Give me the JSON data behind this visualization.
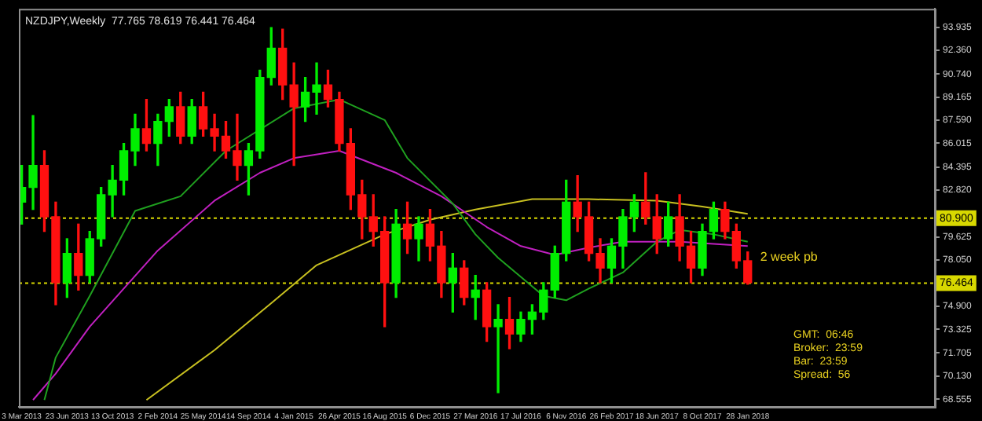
{
  "chart_data": {
    "type": "candlestick",
    "title": "NZDJPY,Weekly  77.765 78.619 76.441 76.464",
    "x": [
      "2013-03-03",
      "2013-03-31",
      "2013-04-28",
      "2013-05-26",
      "2013-06-23",
      "2013-07-21",
      "2013-08-18",
      "2013-09-15",
      "2013-10-13",
      "2013-11-10",
      "2013-12-08",
      "2014-01-05",
      "2014-02-02",
      "2014-03-02",
      "2014-03-30",
      "2014-04-27",
      "2014-05-25",
      "2014-06-22",
      "2014-07-20",
      "2014-08-17",
      "2014-09-14",
      "2014-10-12",
      "2014-11-09",
      "2014-12-07",
      "2015-01-04",
      "2015-02-01",
      "2015-03-01",
      "2015-03-29",
      "2015-04-26",
      "2015-05-24",
      "2015-06-21",
      "2015-07-19",
      "2015-08-16",
      "2015-09-13",
      "2015-10-11",
      "2015-11-08",
      "2015-12-06",
      "2016-01-03",
      "2016-01-31",
      "2016-02-28",
      "2016-03-27",
      "2016-04-24",
      "2016-05-22",
      "2016-06-19",
      "2016-07-17",
      "2016-08-14",
      "2016-09-11",
      "2016-10-09",
      "2016-11-06",
      "2016-12-04",
      "2017-01-01",
      "2017-01-29",
      "2017-02-26",
      "2017-03-26",
      "2017-04-23",
      "2017-05-21",
      "2017-06-18",
      "2017-07-16",
      "2017-08-13",
      "2017-09-10",
      "2017-10-08",
      "2017-11-05",
      "2017-12-03",
      "2017-12-31",
      "2018-01-28"
    ],
    "ohlc": [
      [
        82.0,
        84.5,
        80.5,
        83.0
      ],
      [
        83.0,
        87.9,
        81.5,
        84.5
      ],
      [
        84.5,
        85.5,
        80.0,
        81.0
      ],
      [
        81.0,
        82.0,
        75.0,
        76.5
      ],
      [
        76.5,
        79.5,
        75.5,
        78.5
      ],
      [
        78.5,
        80.5,
        76.0,
        77.0
      ],
      [
        77.0,
        80.0,
        76.5,
        79.5
      ],
      [
        79.5,
        83.0,
        79.0,
        82.5
      ],
      [
        82.5,
        84.5,
        81.0,
        83.5
      ],
      [
        83.5,
        86.0,
        82.5,
        85.5
      ],
      [
        85.5,
        88.0,
        84.5,
        87.0
      ],
      [
        87.0,
        89.0,
        85.5,
        86.0
      ],
      [
        86.0,
        88.0,
        84.5,
        87.5
      ],
      [
        87.5,
        89.0,
        86.5,
        88.5
      ],
      [
        88.5,
        89.5,
        86.0,
        86.5
      ],
      [
        86.5,
        89.0,
        86.0,
        88.5
      ],
      [
        88.5,
        89.5,
        86.5,
        87.0
      ],
      [
        87.0,
        88.0,
        85.5,
        86.5
      ],
      [
        86.5,
        87.5,
        85.0,
        85.5
      ],
      [
        85.5,
        88.0,
        83.5,
        84.5
      ],
      [
        84.5,
        86.0,
        82.5,
        85.5
      ],
      [
        85.5,
        91.0,
        85.0,
        90.5
      ],
      [
        90.5,
        93.9,
        90.0,
        92.5
      ],
      [
        92.5,
        93.8,
        89.0,
        90.0
      ],
      [
        90.0,
        91.5,
        84.5,
        88.5
      ],
      [
        88.5,
        90.5,
        87.5,
        89.5
      ],
      [
        89.5,
        91.5,
        88.0,
        90.0
      ],
      [
        90.0,
        91.0,
        88.5,
        89.0
      ],
      [
        89.0,
        89.5,
        85.5,
        86.0
      ],
      [
        86.0,
        87.0,
        81.5,
        82.5
      ],
      [
        82.5,
        83.5,
        79.5,
        81.0
      ],
      [
        81.0,
        82.5,
        79.0,
        80.0
      ],
      [
        80.0,
        81.0,
        73.5,
        76.5
      ],
      [
        76.5,
        81.5,
        75.5,
        80.5
      ],
      [
        80.5,
        82.0,
        78.5,
        79.5
      ],
      [
        79.5,
        81.0,
        78.0,
        80.5
      ],
      [
        80.5,
        81.5,
        78.0,
        79.0
      ],
      [
        79.0,
        80.0,
        75.5,
        76.5
      ],
      [
        76.5,
        78.5,
        74.5,
        77.5
      ],
      [
        77.5,
        78.0,
        75.0,
        75.5
      ],
      [
        75.5,
        77.0,
        74.0,
        76.0
      ],
      [
        76.0,
        76.5,
        72.5,
        73.5
      ],
      [
        73.5,
        75.0,
        69.0,
        74.0
      ],
      [
        74.0,
        75.5,
        72.0,
        73.0
      ],
      [
        73.0,
        74.5,
        72.5,
        74.0
      ],
      [
        74.0,
        75.0,
        73.0,
        74.5
      ],
      [
        74.5,
        76.5,
        74.0,
        76.0
      ],
      [
        76.0,
        79.0,
        75.5,
        78.5
      ],
      [
        78.5,
        83.5,
        78.0,
        82.0
      ],
      [
        82.0,
        83.8,
        80.0,
        81.0
      ],
      [
        81.0,
        82.0,
        78.0,
        78.5
      ],
      [
        78.5,
        79.5,
        76.5,
        77.5
      ],
      [
        77.5,
        79.5,
        76.5,
        79.0
      ],
      [
        79.0,
        81.5,
        77.5,
        81.0
      ],
      [
        81.0,
        82.5,
        80.0,
        82.0
      ],
      [
        82.0,
        84.0,
        80.5,
        81.0
      ],
      [
        81.0,
        82.5,
        78.5,
        79.5
      ],
      [
        79.5,
        82.0,
        79.0,
        81.0
      ],
      [
        81.0,
        82.5,
        78.0,
        79.0
      ],
      [
        79.0,
        80.0,
        76.5,
        77.5
      ],
      [
        77.5,
        80.5,
        77.0,
        80.0
      ],
      [
        80.0,
        82.0,
        79.5,
        81.5
      ],
      [
        81.5,
        82.0,
        79.5,
        80.0
      ],
      [
        80.0,
        80.5,
        77.5,
        78.0
      ],
      [
        78.0,
        78.6,
        76.4,
        76.5
      ]
    ],
    "series": [
      {
        "type": "line",
        "color": "#1fa01f",
        "x": [
          "2013-04-28",
          "2013-05-26",
          "2013-08-18",
          "2013-12-08",
          "2014-03-30",
          "2014-07-20",
          "2015-01-04",
          "2015-04-26",
          "2015-08-16",
          "2015-10-11",
          "2016-01-31",
          "2016-03-27",
          "2016-05-22",
          "2016-09-11",
          "2016-11-06",
          "2017-01-01",
          "2017-03-26",
          "2017-06-18",
          "2017-08-13",
          "2017-11-05",
          "2018-01-28"
        ],
        "values": [
          68.5,
          71.4,
          75.6,
          81.4,
          82.4,
          85.5,
          88.4,
          89.0,
          87.6,
          85.0,
          81.9,
          79.8,
          78.2,
          75.6,
          75.3,
          76.1,
          77.2,
          79.3,
          80.1,
          79.8,
          79.3
        ]
      },
      {
        "type": "line",
        "color": "#c020c0",
        "x": [
          "2013-03-31",
          "2013-05-26",
          "2013-08-18",
          "2014-02-02",
          "2014-06-22",
          "2014-10-12",
          "2015-01-04",
          "2015-04-26",
          "2015-09-13",
          "2016-01-03",
          "2016-04-24",
          "2016-07-17",
          "2016-10-09",
          "2017-01-01",
          "2017-03-26",
          "2017-08-13",
          "2018-01-28"
        ],
        "values": [
          68.5,
          70.3,
          73.5,
          78.7,
          82.1,
          84.0,
          85.0,
          85.5,
          84.0,
          82.4,
          80.3,
          79.0,
          78.4,
          78.9,
          79.3,
          79.3,
          79.0
        ]
      },
      {
        "type": "line",
        "color": "#c8c020",
        "x": [
          "2014-01-05",
          "2014-06-22",
          "2014-11-09",
          "2015-03-01",
          "2015-08-16",
          "2015-12-06",
          "2016-03-27",
          "2016-08-14",
          "2017-01-01",
          "2017-06-18",
          "2017-10-08",
          "2018-01-28"
        ],
        "values": [
          68.5,
          71.9,
          75.1,
          77.7,
          79.8,
          80.8,
          81.5,
          82.2,
          82.2,
          82.1,
          81.7,
          81.2
        ]
      }
    ],
    "xlim": [
      "2013-02-24",
      "2019-05-05"
    ],
    "xticks": [
      {
        "value": "2013-03-03",
        "label": "3 Mar 2013"
      },
      {
        "value": "2013-06-23",
        "label": "23 Jun 2013"
      },
      {
        "value": "2013-10-13",
        "label": "13 Oct 2013"
      },
      {
        "value": "2014-02-02",
        "label": "2 Feb 2014"
      },
      {
        "value": "2014-05-25",
        "label": "25 May 2014"
      },
      {
        "value": "2014-09-14",
        "label": "14 Sep 2014"
      },
      {
        "value": "2015-01-04",
        "label": "4 Jan 2015"
      },
      {
        "value": "2015-04-26",
        "label": "26 Apr 2015"
      },
      {
        "value": "2015-08-16",
        "label": "16 Aug 2015"
      },
      {
        "value": "2015-12-06",
        "label": "6 Dec 2015"
      },
      {
        "value": "2016-03-27",
        "label": "27 Mar 2016"
      },
      {
        "value": "2016-07-17",
        "label": "17 Jul 2016"
      },
      {
        "value": "2016-11-06",
        "label": "6 Nov 2016"
      },
      {
        "value": "2017-02-26",
        "label": "26 Feb 2017"
      },
      {
        "value": "2017-06-18",
        "label": "18 Jun 2017"
      },
      {
        "value": "2017-10-08",
        "label": "8 Oct 2017"
      },
      {
        "value": "2018-01-28",
        "label": "28 Jan 2018"
      }
    ],
    "ylim": [
      68.03,
      95.19
    ],
    "yticks": [
      {
        "value": 93.935,
        "label": "93.935"
      },
      {
        "value": 92.36,
        "label": "92.360"
      },
      {
        "value": 90.74,
        "label": "90.740"
      },
      {
        "value": 89.165,
        "label": "89.165"
      },
      {
        "value": 87.59,
        "label": "87.590"
      },
      {
        "value": 86.015,
        "label": "86.015"
      },
      {
        "value": 84.395,
        "label": "84.395"
      },
      {
        "value": 82.82,
        "label": "82.820"
      },
      {
        "value": 79.625,
        "label": "79.625"
      },
      {
        "value": 78.05,
        "label": "78.050"
      },
      {
        "value": 74.9,
        "label": "74.900"
      },
      {
        "value": 73.325,
        "label": "73.325"
      },
      {
        "value": 71.705,
        "label": "71.705"
      },
      {
        "value": 70.13,
        "label": "70.130"
      },
      {
        "value": 68.555,
        "label": "68.555"
      }
    ],
    "ref_lines": [
      {
        "axis": "y",
        "value": 80.9,
        "label": "80.900",
        "color": "#d8d800",
        "line_style": "dotted"
      },
      {
        "axis": "y",
        "value": 76.464,
        "label": "76.464",
        "color": "#d8d800",
        "line_style": "dotted"
      }
    ],
    "annotations": [
      "2 week pb",
      "GMT:  06:46",
      "Broker:  23:59",
      "Bar:  23:59",
      "Spread:  56"
    ],
    "grid": false,
    "legend": false
  }
}
